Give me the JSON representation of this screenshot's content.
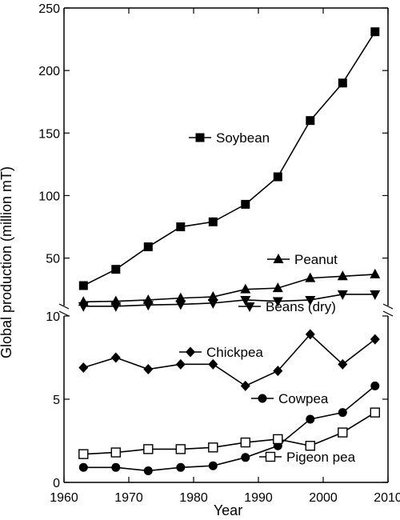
{
  "chart_data": {
    "type": "line",
    "xlabel": "Year",
    "ylabel": "Global production (million mT)",
    "xlim": [
      1960,
      2010
    ],
    "xticks": [
      1960,
      1970,
      1980,
      1990,
      2000,
      2010
    ],
    "x": [
      1963,
      1968,
      1973,
      1978,
      1983,
      1988,
      1993,
      1998,
      2003,
      2008
    ],
    "panels": [
      {
        "id": "upper",
        "ylim": [
          12,
          250
        ],
        "yticks": [
          50,
          100,
          150,
          200,
          250
        ],
        "series": [
          {
            "name": "Soybean",
            "marker": "square-filled",
            "values": [
              28,
              41,
              59,
              75,
              79,
              93,
              115,
              160,
              190,
              231
            ]
          },
          {
            "name": "Peanut",
            "marker": "triangle-up",
            "values": [
              15,
              15.5,
              16.5,
              18,
              19,
              25,
              26,
              34,
              35.5,
              37
            ]
          },
          {
            "name": "Beans (dry)",
            "marker": "triangle-down",
            "values": [
              11.5,
              11.5,
              12.5,
              13,
              14,
              16.5,
              15.5,
              16.5,
              21,
              21
            ]
          }
        ]
      },
      {
        "id": "lower",
        "ylim": [
          0,
          10
        ],
        "yticks": [
          0,
          5,
          10
        ],
        "series": [
          {
            "name": "Chickpea",
            "marker": "diamond-filled",
            "values": [
              6.9,
              7.5,
              6.8,
              7.1,
              7.1,
              5.8,
              6.7,
              8.9,
              7.1,
              8.6
            ]
          },
          {
            "name": "Cowpea",
            "marker": "circle-filled",
            "values": [
              0.9,
              0.9,
              0.7,
              0.9,
              1.0,
              1.5,
              2.2,
              3.8,
              4.2,
              5.8
            ]
          },
          {
            "name": "Pigeon pea",
            "marker": "square-open",
            "values": [
              1.7,
              1.8,
              2.0,
              2.0,
              2.1,
              2.4,
              2.6,
              2.2,
              3.0,
              4.2
            ]
          }
        ]
      }
    ],
    "legend": "inline labels beside each series"
  }
}
